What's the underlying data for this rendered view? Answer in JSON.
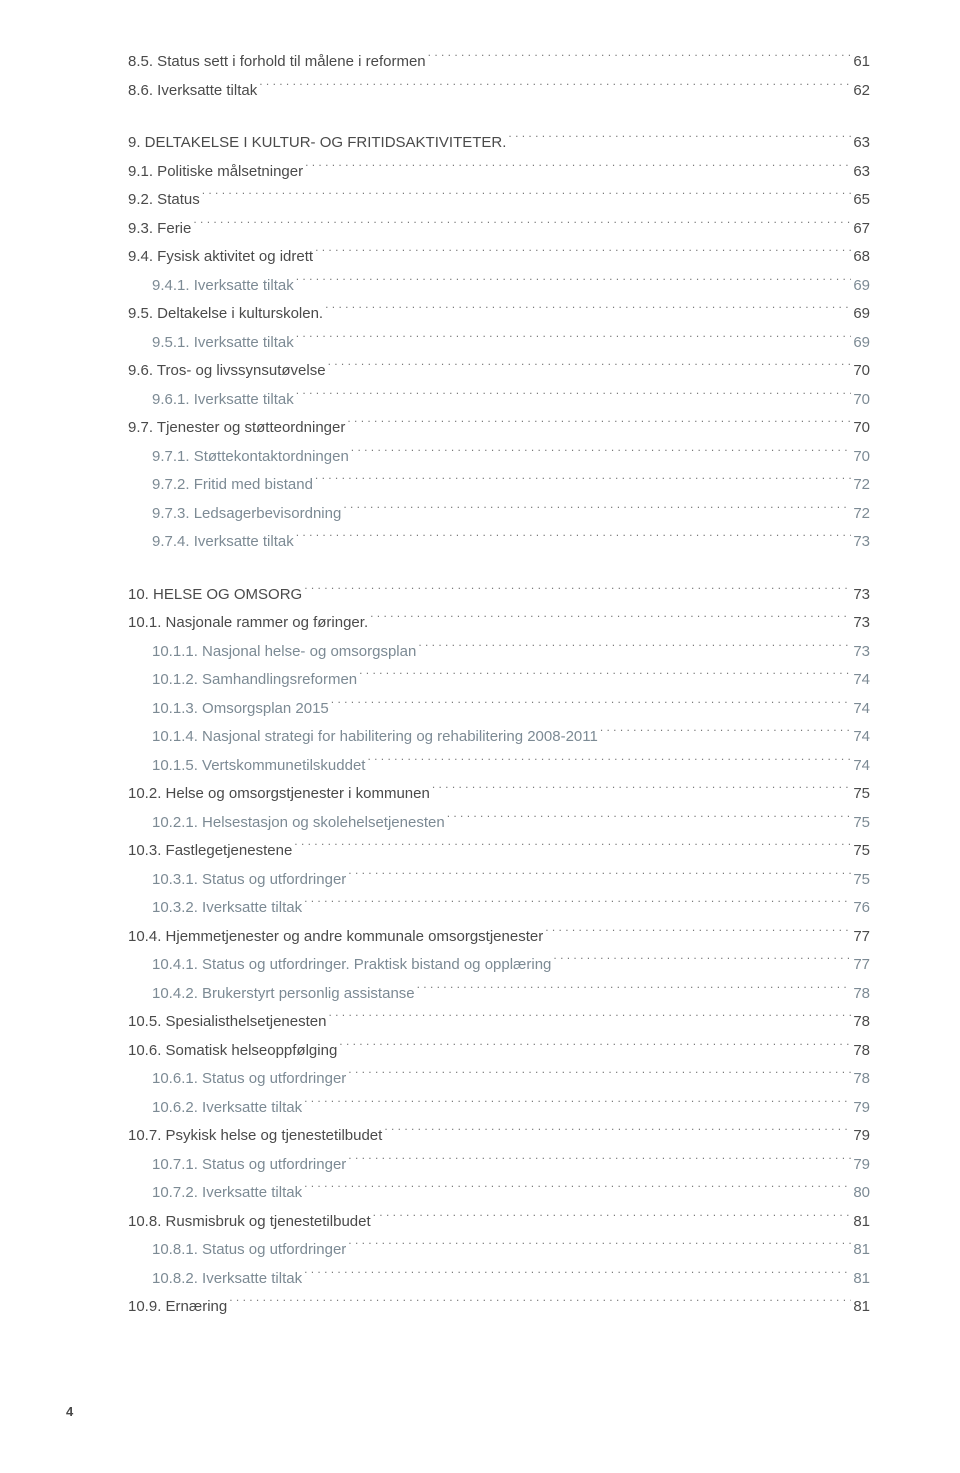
{
  "pageNumber": "4",
  "entries": [
    {
      "level": 0,
      "bold": false,
      "label": "8.5. Status sett i forhold til målene i reformen",
      "page": "61"
    },
    {
      "level": 0,
      "bold": false,
      "label": "8.6. Iverksatte tiltak",
      "page": "62"
    },
    {
      "spacer": true
    },
    {
      "level": 0,
      "bold": true,
      "label": "9. DELTAKELSE I KULTUR- OG FRITIDSAKTIVITETER.",
      "page": "63"
    },
    {
      "level": 0,
      "bold": false,
      "label": "9.1. Politiske målsetninger",
      "page": "63"
    },
    {
      "level": 0,
      "bold": false,
      "label": "9.2. Status",
      "page": "65"
    },
    {
      "level": 0,
      "bold": false,
      "label": "9.3. Ferie",
      "page": "67"
    },
    {
      "level": 0,
      "bold": false,
      "label": "9.4. Fysisk aktivitet og idrett",
      "page": "68"
    },
    {
      "level": 1,
      "bold": false,
      "label": "9.4.1. Iverksatte tiltak",
      "page": "69"
    },
    {
      "level": 0,
      "bold": false,
      "label": "9.5. Deltakelse i kulturskolen.",
      "page": "69"
    },
    {
      "level": 1,
      "bold": false,
      "label": "9.5.1. Iverksatte tiltak",
      "page": "69"
    },
    {
      "level": 0,
      "bold": false,
      "label": "9.6. Tros- og livssynsutøvelse",
      "page": "70"
    },
    {
      "level": 1,
      "bold": false,
      "label": "9.6.1. Iverksatte tiltak",
      "page": "70"
    },
    {
      "level": 0,
      "bold": false,
      "label": "9.7. Tjenester og støtteordninger",
      "page": "70"
    },
    {
      "level": 1,
      "bold": false,
      "label": "9.7.1. Støttekontaktordningen",
      "page": "70"
    },
    {
      "level": 1,
      "bold": false,
      "label": "9.7.2. Fritid med bistand",
      "page": "72"
    },
    {
      "level": 1,
      "bold": false,
      "label": "9.7.3. Ledsagerbevisordning",
      "page": "72"
    },
    {
      "level": 1,
      "bold": false,
      "label": "9.7.4. Iverksatte tiltak",
      "page": "73"
    },
    {
      "spacer": true
    },
    {
      "level": 0,
      "bold": true,
      "label": "10. HELSE OG OMSORG",
      "page": "73"
    },
    {
      "level": 0,
      "bold": false,
      "label": "10.1. Nasjonale rammer og føringer.",
      "page": "73"
    },
    {
      "level": 1,
      "bold": false,
      "label": "10.1.1. Nasjonal helse- og omsorgsplan",
      "page": "73"
    },
    {
      "level": 1,
      "bold": false,
      "label": "10.1.2. Samhandlingsreformen",
      "page": "74"
    },
    {
      "level": 1,
      "bold": false,
      "label": "10.1.3. Omsorgsplan 2015",
      "page": "74"
    },
    {
      "level": 1,
      "bold": false,
      "label": "10.1.4. Nasjonal strategi for habilitering og rehabilitering 2008-2011",
      "page": "74"
    },
    {
      "level": 1,
      "bold": false,
      "label": "10.1.5. Vertskommunetilskuddet",
      "page": "74"
    },
    {
      "level": 0,
      "bold": false,
      "label": "10.2. Helse og omsorgstjenester i kommunen",
      "page": "75"
    },
    {
      "level": 1,
      "bold": false,
      "label": "10.2.1. Helsestasjon og skolehelsetjenesten",
      "page": "75"
    },
    {
      "level": 0,
      "bold": false,
      "label": "10.3. Fastlegetjenestene",
      "page": "75"
    },
    {
      "level": 1,
      "bold": false,
      "label": "10.3.1. Status og utfordringer",
      "page": "75"
    },
    {
      "level": 1,
      "bold": false,
      "label": "10.3.2. Iverksatte tiltak",
      "page": "76"
    },
    {
      "level": 0,
      "bold": false,
      "label": "10.4. Hjemmetjenester og andre kommunale omsorgstjenester",
      "page": "77"
    },
    {
      "level": 1,
      "bold": false,
      "label": "10.4.1. Status og utfordringer. Praktisk bistand og opplæring",
      "page": "77"
    },
    {
      "level": 1,
      "bold": false,
      "label": "10.4.2. Brukerstyrt personlig assistanse",
      "page": "78"
    },
    {
      "level": 0,
      "bold": false,
      "label": "10.5. Spesialisthelsetjenesten",
      "page": "78"
    },
    {
      "level": 0,
      "bold": false,
      "label": "10.6. Somatisk helseoppfølging",
      "page": "78"
    },
    {
      "level": 1,
      "bold": false,
      "label": "10.6.1. Status og utfordringer",
      "page": "78"
    },
    {
      "level": 1,
      "bold": false,
      "label": "10.6.2. Iverksatte tiltak",
      "page": "79"
    },
    {
      "level": 0,
      "bold": false,
      "label": "10.7. Psykisk helse og tjenestetilbudet",
      "page": "79"
    },
    {
      "level": 1,
      "bold": false,
      "label": "10.7.1. Status og utfordringer",
      "page": "79"
    },
    {
      "level": 1,
      "bold": false,
      "label": "10.7.2. Iverksatte tiltak",
      "page": "80"
    },
    {
      "level": 0,
      "bold": false,
      "label": "10.8. Rusmisbruk og tjenestetilbudet",
      "page": "81"
    },
    {
      "level": 1,
      "bold": false,
      "label": "10.8.1. Status og utfordringer",
      "page": "81"
    },
    {
      "level": 1,
      "bold": false,
      "label": "10.8.2. Iverksatte tiltak",
      "page": "81"
    },
    {
      "level": 0,
      "bold": false,
      "label": "10.9. Ernæring",
      "page": "81"
    }
  ]
}
